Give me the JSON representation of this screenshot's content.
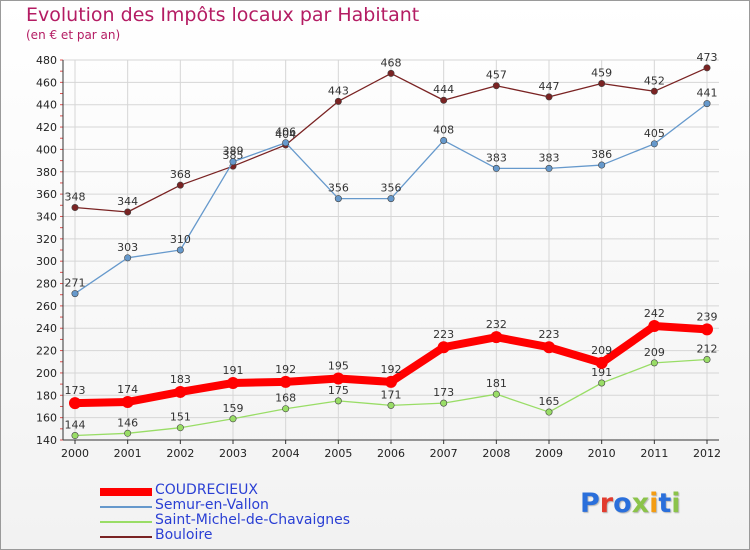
{
  "title": "Evolution des Impôts locaux par Habitant",
  "subtitle": "(en € et par an)",
  "logo": {
    "text": "Proxiti",
    "colors": [
      "#2a6fdb",
      "#e23b2e",
      "#2a6fdb",
      "#8bc34a",
      "#f39c12",
      "#2a6fdb",
      "#8bc34a"
    ]
  },
  "chart_data": {
    "type": "line",
    "x": [
      "2000",
      "2001",
      "2002",
      "2003",
      "2004",
      "2005",
      "2006",
      "2007",
      "2008",
      "2009",
      "2010",
      "2011",
      "2012"
    ],
    "ylim": [
      140,
      480
    ],
    "yticks": [
      140,
      160,
      180,
      200,
      220,
      240,
      260,
      280,
      300,
      320,
      340,
      360,
      380,
      400,
      420,
      440,
      460,
      480
    ],
    "grid": true,
    "legend_position": "bottom-left",
    "series": [
      {
        "name": "COUDRECIEUX",
        "color": "#ff0000",
        "width": 8,
        "labels_above": true,
        "values": [
          173,
          174,
          183,
          191,
          192,
          195,
          192,
          223,
          232,
          223,
          209,
          242,
          239
        ]
      },
      {
        "name": "Semur-en-Vallon",
        "color": "#6699cc",
        "width": 1.3,
        "labels_above": true,
        "values": [
          271,
          303,
          310,
          389,
          406,
          356,
          356,
          408,
          383,
          383,
          386,
          405,
          441
        ]
      },
      {
        "name": "Saint-Michel-de-Chavaignes",
        "color": "#99dd66",
        "width": 1.3,
        "labels_above": true,
        "values": [
          144,
          146,
          151,
          159,
          168,
          175,
          171,
          173,
          181,
          165,
          191,
          209,
          212
        ]
      },
      {
        "name": "Bouloire",
        "color": "#7a2323",
        "width": 1.3,
        "labels_above": true,
        "values": [
          348,
          344,
          368,
          385,
          404,
          443,
          468,
          444,
          457,
          447,
          459,
          452,
          473
        ]
      }
    ]
  }
}
